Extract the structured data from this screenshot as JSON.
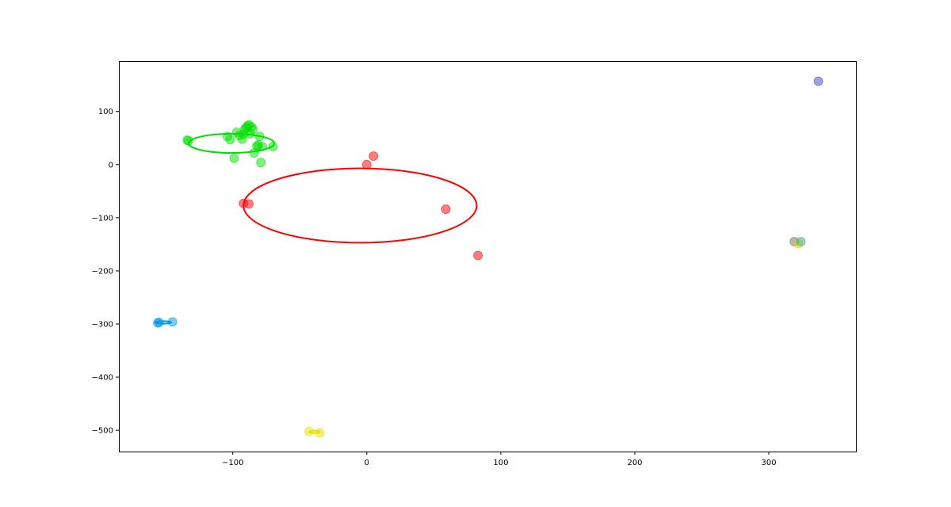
{
  "chart_data": {
    "type": "scatter",
    "xlim": [
      -185,
      365
    ],
    "ylim": [
      -540,
      195
    ],
    "x_ticks": [
      -100,
      0,
      100,
      200,
      300
    ],
    "y_ticks": [
      100,
      0,
      -100,
      -200,
      -300,
      -400,
      -500
    ],
    "x_tick_labels": [
      "−100",
      "0",
      "100",
      "200",
      "300"
    ],
    "y_tick_labels": [
      "100",
      "0",
      "−100",
      "−200",
      "−300",
      "−400",
      "−500"
    ],
    "grid": false,
    "series": [
      {
        "color": "#00e000",
        "points": [
          [
            -134,
            46
          ],
          [
            -133,
            45
          ],
          [
            -104,
            53
          ],
          [
            -102,
            47
          ],
          [
            -97,
            61
          ],
          [
            -95,
            55
          ],
          [
            -93,
            48
          ],
          [
            -92,
            57
          ],
          [
            -91,
            67
          ],
          [
            -90,
            69
          ],
          [
            -89,
            73
          ],
          [
            -88,
            75
          ],
          [
            -87,
            58
          ],
          [
            -86,
            71
          ],
          [
            -85,
            66
          ],
          [
            -84,
            22
          ],
          [
            -82,
            35
          ],
          [
            -81,
            37
          ],
          [
            -80,
            53
          ],
          [
            -79,
            4
          ],
          [
            -78,
            34
          ],
          [
            -70,
            34
          ],
          [
            -99,
            12
          ]
        ],
        "ellipse": {
          "cx": -101,
          "cy": 40,
          "rx": 32,
          "ry": 18
        }
      },
      {
        "color": "#ff0000",
        "points": [
          [
            -92,
            -73
          ],
          [
            -88,
            -74
          ],
          [
            0,
            0
          ],
          [
            5,
            16
          ],
          [
            59,
            -84
          ],
          [
            83,
            -171
          ]
        ],
        "ellipse": {
          "cx": -5,
          "cy": -77,
          "rx": 87,
          "ry": 70
        }
      },
      {
        "color": "#0098e0",
        "points": [
          [
            -156,
            -298
          ],
          [
            -155,
            -297
          ],
          [
            -145,
            -296
          ]
        ],
        "ellipse": {
          "cx": -152,
          "cy": -297,
          "rx": 6,
          "ry": 1
        }
      },
      {
        "color": "#e8e000",
        "points": [
          [
            -43,
            -502
          ],
          [
            -35,
            -505
          ]
        ],
        "ellipse": {
          "cx": -39,
          "cy": -503,
          "rx": 4,
          "ry": 1
        }
      },
      {
        "color": "#7a6a6a",
        "points": [
          [
            319,
            -145
          ]
        ],
        "ellipse": null
      },
      {
        "color": "#cfe000",
        "points": [
          [
            322,
            -149
          ]
        ],
        "ellipse": null
      },
      {
        "color": "#40a880",
        "points": [
          [
            324,
            -145
          ]
        ],
        "ellipse": null
      },
      {
        "color": "#4a40c0",
        "points": [
          [
            337,
            157
          ]
        ],
        "ellipse": null
      }
    ]
  }
}
